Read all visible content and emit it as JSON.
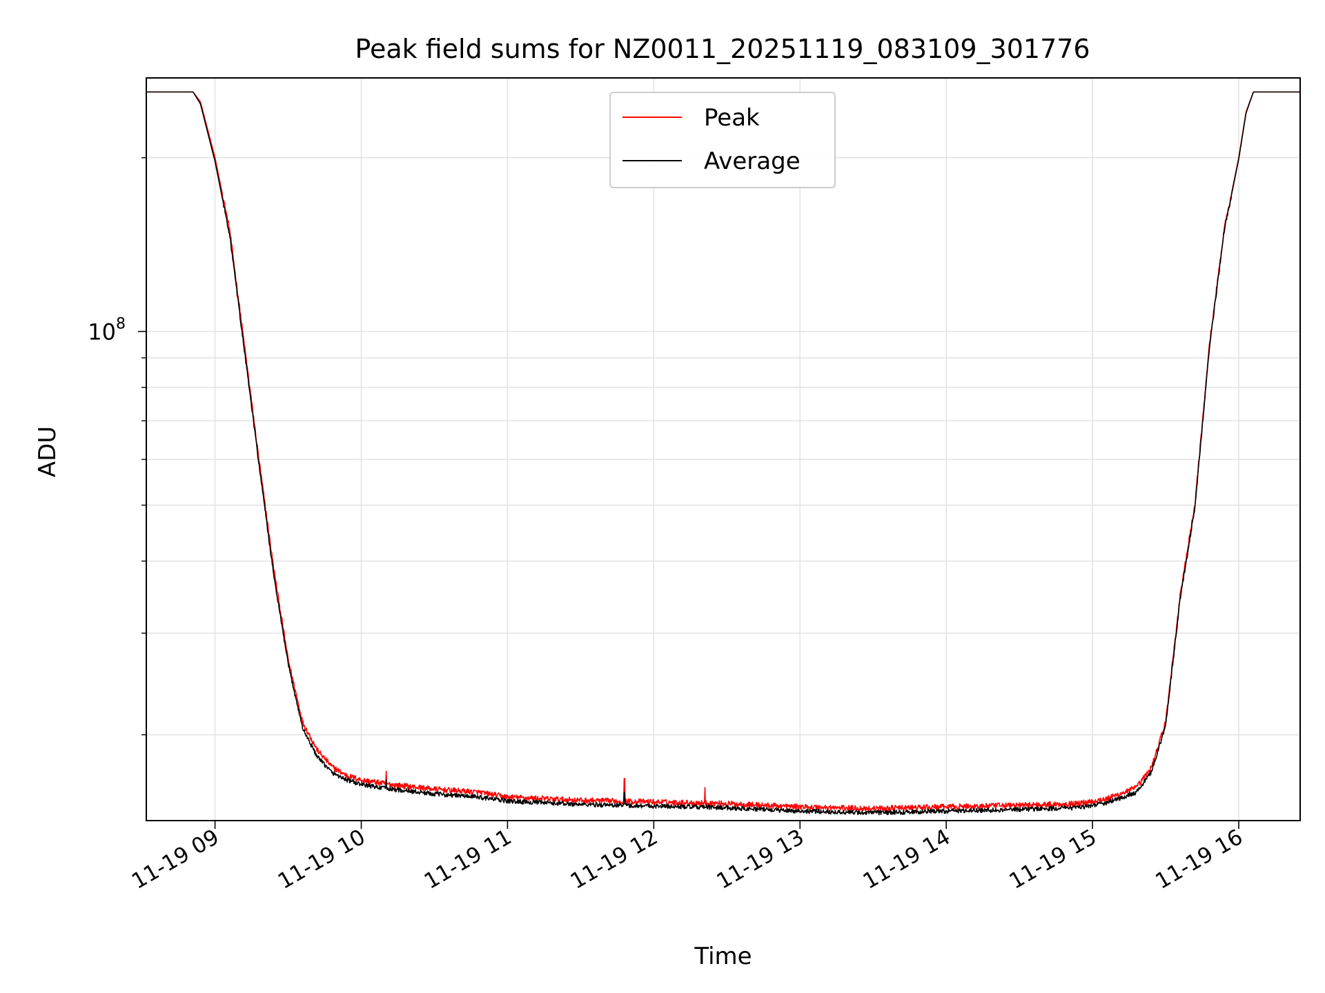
{
  "chart_data": {
    "type": "line",
    "title": "Peak field sums for NZ0011_20251119_083109_301776",
    "xlabel": "Time",
    "ylabel": "ADU",
    "yscale": "log",
    "xlim": [
      8.53,
      16.42
    ],
    "ylim": [
      14200000,
      275000000
    ],
    "x_ticks": [
      {
        "value": 9,
        "label": "11-19 09"
      },
      {
        "value": 10,
        "label": "11-19 10"
      },
      {
        "value": 11,
        "label": "11-19 11"
      },
      {
        "value": 12,
        "label": "11-19 12"
      },
      {
        "value": 13,
        "label": "11-19 13"
      },
      {
        "value": 14,
        "label": "11-19 14"
      },
      {
        "value": 15,
        "label": "11-19 15"
      },
      {
        "value": 16,
        "label": "11-19 16"
      }
    ],
    "y_major_ticks": [
      {
        "value": 100000000,
        "base": "10",
        "exponent": "8"
      }
    ],
    "y_minor_ticks": [
      20000000,
      30000000,
      40000000,
      50000000,
      60000000,
      70000000,
      80000000,
      90000000,
      200000000
    ],
    "grid": true,
    "legend_position": "top-center",
    "series": [
      {
        "name": "Peak",
        "color": "#ff0000",
        "noise": 0.011,
        "spikes": [
          [
            10.17,
            17300000
          ],
          [
            11.8,
            16800000
          ],
          [
            12.35,
            16200000
          ]
        ],
        "x": [
          8.53,
          8.85,
          8.9,
          9.0,
          9.1,
          9.2,
          9.3,
          9.4,
          9.5,
          9.6,
          9.7,
          9.8,
          9.9,
          10.0,
          10.2,
          10.5,
          10.8,
          11.0,
          11.5,
          12.0,
          12.5,
          13.0,
          13.5,
          14.0,
          14.5,
          14.9,
          15.1,
          15.3,
          15.4,
          15.5,
          15.6,
          15.7,
          15.8,
          15.9,
          16.0,
          16.05,
          16.1,
          16.42
        ],
        "y": [
          260000000,
          260000000,
          250000000,
          200000000,
          150000000,
          95000000,
          60000000,
          39000000,
          27000000,
          21000000,
          18800000,
          17600000,
          17000000,
          16700000,
          16400000,
          16100000,
          15900000,
          15600000,
          15400000,
          15300000,
          15200000,
          15000000,
          14900000,
          15000000,
          15100000,
          15200000,
          15500000,
          16200000,
          17500000,
          21000000,
          35000000,
          50000000,
          95000000,
          150000000,
          200000000,
          240000000,
          260000000,
          260000000
        ]
      },
      {
        "name": "Average",
        "color": "#000000",
        "noise": 0.009,
        "spikes": [
          [
            10.17,
            16700000
          ],
          [
            11.8,
            15900000
          ]
        ],
        "x": [
          8.53,
          8.85,
          8.9,
          9.0,
          9.1,
          9.2,
          9.3,
          9.4,
          9.5,
          9.6,
          9.7,
          9.8,
          9.9,
          10.0,
          10.2,
          10.5,
          10.8,
          11.0,
          11.5,
          12.0,
          12.5,
          13.0,
          13.5,
          14.0,
          14.5,
          14.9,
          15.1,
          15.3,
          15.4,
          15.5,
          15.6,
          15.7,
          15.8,
          15.9,
          16.0,
          16.05,
          16.1,
          16.42
        ],
        "y": [
          260000000,
          260000000,
          248000000,
          197000000,
          147000000,
          93000000,
          59000000,
          38000000,
          26500000,
          20500000,
          18300000,
          17200000,
          16700000,
          16400000,
          16100000,
          15800000,
          15600000,
          15350000,
          15150000,
          15050000,
          14950000,
          14750000,
          14650000,
          14750000,
          14850000,
          14950000,
          15250000,
          15900000,
          17200000,
          20700000,
          34500000,
          49500000,
          94000000,
          149000000,
          199000000,
          239000000,
          260000000,
          260000000
        ]
      }
    ]
  }
}
